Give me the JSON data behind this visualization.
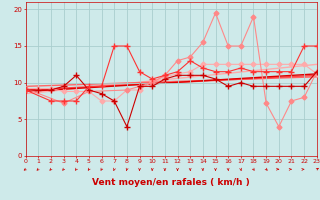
{
  "xlabel": "Vent moyen/en rafales ( km/h )",
  "bg_color": "#ceeaea",
  "grid_color": "#aacece",
  "x_ticks": [
    0,
    1,
    2,
    3,
    4,
    5,
    6,
    7,
    8,
    9,
    10,
    11,
    12,
    13,
    14,
    15,
    16,
    17,
    18,
    19,
    20,
    21,
    22,
    23
  ],
  "y_ticks": [
    0,
    5,
    10,
    15,
    20
  ],
  "xlim": [
    0,
    23
  ],
  "ylim": [
    0,
    21
  ],
  "line_pink_x": [
    0,
    1,
    2,
    3,
    4,
    5,
    6,
    7,
    8,
    9,
    10,
    11,
    12,
    13,
    14,
    15,
    16,
    17,
    18,
    19,
    20,
    21,
    22,
    23
  ],
  "line_pink_y": [
    9.2,
    9.2,
    9.2,
    8.8,
    8.8,
    8.8,
    7.5,
    7.5,
    9.0,
    9.0,
    10.2,
    10.8,
    11.2,
    11.5,
    12.5,
    12.5,
    12.5,
    12.5,
    12.5,
    12.5,
    12.5,
    12.5,
    12.5,
    11.2
  ],
  "line_pink_color": "#ffaaaa",
  "line_pink_marker": "D",
  "line_pink_ms": 2.5,
  "line_dark_x": [
    0,
    1,
    2,
    3,
    4,
    5,
    6,
    7,
    8,
    9,
    10,
    11,
    12,
    13,
    14,
    15,
    16,
    17,
    18,
    19,
    20,
    21,
    22,
    23
  ],
  "line_dark_y": [
    9.0,
    9.0,
    9.0,
    9.5,
    11.0,
    9.0,
    8.5,
    7.5,
    4.0,
    9.5,
    9.5,
    10.5,
    11.0,
    11.0,
    11.0,
    10.5,
    9.5,
    10.0,
    9.5,
    9.5,
    9.5,
    9.5,
    9.5,
    11.5
  ],
  "line_dark_color": "#cc0000",
  "line_dark_marker": "+",
  "line_dark_ms": 4,
  "line_med_x": [
    0,
    2,
    3,
    4,
    5,
    6,
    7,
    8,
    9,
    10,
    11,
    12,
    13,
    14,
    15,
    16,
    17,
    18,
    19,
    20,
    21,
    22,
    23
  ],
  "line_med_y": [
    9.0,
    7.5,
    7.5,
    7.5,
    9.5,
    9.5,
    15.0,
    15.0,
    11.5,
    10.5,
    11.0,
    11.5,
    13.0,
    12.0,
    11.5,
    11.5,
    12.0,
    11.5,
    11.5,
    11.5,
    11.5,
    15.0,
    15.0
  ],
  "line_med_color": "#ff3333",
  "line_med_marker": "+",
  "line_med_ms": 4,
  "line_lpink_x": [
    0,
    3,
    5,
    8,
    9,
    10,
    11,
    12,
    13,
    14,
    15,
    16,
    17,
    18,
    19,
    20,
    21,
    22,
    23
  ],
  "line_lpink_y": [
    9.2,
    7.2,
    8.8,
    9.0,
    9.5,
    10.0,
    11.0,
    13.0,
    13.5,
    15.5,
    19.5,
    15.0,
    15.0,
    19.0,
    7.2,
    4.0,
    7.5,
    8.0,
    11.5
  ],
  "line_lpink_color": "#ff8888",
  "line_lpink_marker": "D",
  "line_lpink_ms": 2.5,
  "trend1_x": [
    0,
    23
  ],
  "trend1_y": [
    8.8,
    11.2
  ],
  "trend1_color": "#dd0000",
  "trend1_lw": 1.0,
  "trend2_x": [
    0,
    23
  ],
  "trend2_y": [
    9.0,
    11.0
  ],
  "trend2_color": "#ff4444",
  "trend2_lw": 1.0,
  "trend3_x": [
    0,
    23
  ],
  "trend3_y": [
    8.5,
    12.5
  ],
  "trend3_color": "#ffaaaa",
  "trend3_lw": 1.0,
  "trend4_x": [
    0,
    23
  ],
  "trend4_y": [
    9.5,
    10.8
  ],
  "trend4_color": "#ff6666",
  "trend4_lw": 1.0,
  "tick_color": "#cc0000",
  "label_color": "#cc0000",
  "tick_fontsize": 4.5,
  "xlabel_fontsize": 6.5,
  "arrow_angles": [
    230,
    235,
    240,
    245,
    248,
    250,
    252,
    258,
    262,
    265,
    268,
    270,
    270,
    272,
    272,
    274,
    274,
    278,
    290,
    300,
    0,
    5,
    10,
    45
  ]
}
